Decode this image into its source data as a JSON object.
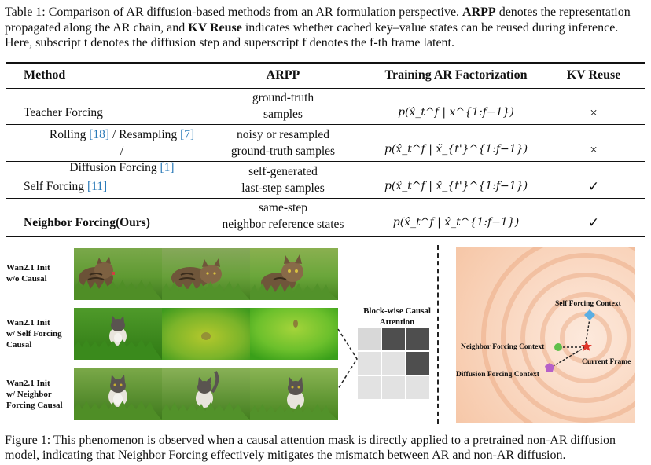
{
  "table_caption": {
    "prefix": "Table 1:  Comparison of AR diffusion-based methods from an AR formulation perspective.",
    "arpp_term": "ARPP",
    "arpp_def": "denotes the representation propagated along the AR chain, and",
    "kv_term": "KV Reuse",
    "kv_def": "indicates whether cached key–value states can be reused during inference. Here, subscript t denotes the diffusion step and superscript f denotes the f-th frame latent."
  },
  "table": {
    "headers": [
      "Method",
      "ARPP",
      "Training AR Factorization",
      "KV Reuse"
    ],
    "rows": [
      {
        "method": "Teacher Forcing",
        "arpp_l1": "ground-truth",
        "arpp_l2": "samples",
        "factorization": "p(x̂_t^f | x^{1:f−1})",
        "kv": "×"
      },
      {
        "method_p1": "Rolling",
        "cite1": "[18]",
        "method_p2": "/ Resampling",
        "cite2": "[7]",
        "method_p3": "/",
        "method_p4": "Diffusion Forcing",
        "cite3": "[1]",
        "arpp_l1": "noisy or resampled",
        "arpp_l2": "ground-truth samples",
        "factorization": "p(x̂_t^f | x̃_{t'}^{1:f−1})",
        "kv": "×"
      },
      {
        "method": "Self Forcing",
        "cite": "[11]",
        "arpp_l1": "self-generated",
        "arpp_l2": "last-step samples",
        "factorization": "p(x̂_t^f | x̂_{t'}^{1:f−1})",
        "kv": "✓"
      },
      {
        "method": "Neighbor Forcing(Ours)",
        "arpp_l1": "same-step",
        "arpp_l2": "neighbor reference states",
        "factorization": "p(x̂_t^f | x̂_t^{1:f−1})",
        "kv": "✓"
      }
    ]
  },
  "figure": {
    "rows": [
      {
        "label_l1": "Wan2.1 Init",
        "label_l2": "w/o Causal",
        "label_l3": ""
      },
      {
        "label_l1": "Wan2.1 Init",
        "label_l2": "w/ Self Forcing",
        "label_l3": "Causal"
      },
      {
        "label_l1": "Wan2.1 Init",
        "label_l2": "w/ Neighbor",
        "label_l3": "Forcing Causal"
      }
    ],
    "attention_title_l1": "Block-wise Causal",
    "attention_title_l2": "Attention",
    "context_labels": {
      "self": "Self Forcing Context",
      "neighbor": "Neighbor Forcing Context",
      "current": "Current Frame",
      "diffusion": "Diffusion Forcing Context"
    },
    "colors": {
      "self": "#5aaee3",
      "neighbor": "#5fbf4a",
      "current": "#e0352a",
      "diffusion": "#b660c8"
    }
  },
  "figure_caption": {
    "text": "Figure 1: This phenomenon is observed when a causal attention mask is directly applied to a pretrained non-AR diffusion model, indicating that Neighbor Forcing effectively mitigates the mismatch between AR and non-AR diffusion."
  }
}
